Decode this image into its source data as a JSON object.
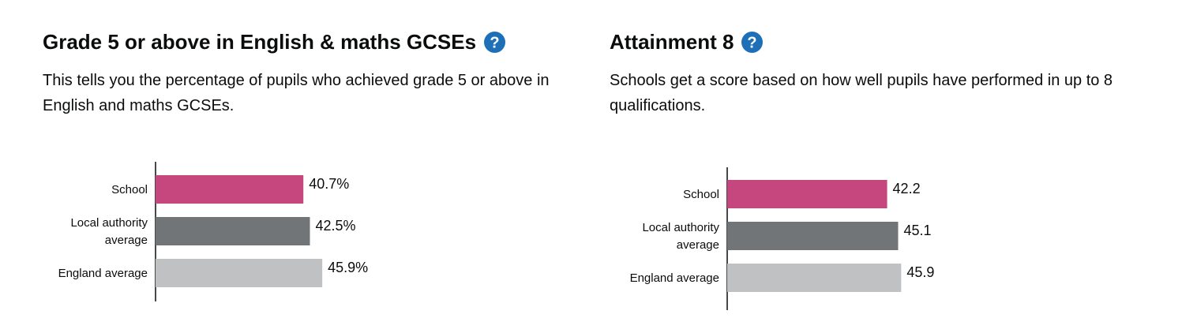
{
  "colors": {
    "school": "#c6477d",
    "local_authority": "#717578",
    "england": "#bfc1c3",
    "help_icon": "#1d70b8",
    "axis": "#0b0c0c"
  },
  "panels": [
    {
      "title": "Grade 5 or above in English & maths GCSEs",
      "help_icon": "question-mark-icon",
      "description": "This tells you the percentage of pupils who achieved grade 5 or above in English and maths GCSEs."
    },
    {
      "title": "Attainment 8",
      "help_icon": "question-mark-icon",
      "description": "Schools get a score based on how well pupils have performed in up to 8 qualifications."
    }
  ],
  "chart_data": [
    {
      "type": "bar",
      "orientation": "horizontal",
      "categories": [
        [
          "School"
        ],
        [
          "Local authority",
          "average"
        ],
        [
          "England average"
        ]
      ],
      "values": [
        40.7,
        42.5,
        45.9
      ],
      "value_labels": [
        "40.7%",
        "42.5%",
        "45.9%"
      ],
      "colors": [
        "#c6477d",
        "#717578",
        "#bfc1c3"
      ],
      "xlim": [
        0,
        100
      ],
      "grid": false,
      "title": "",
      "xlabel": "",
      "ylabel": ""
    },
    {
      "type": "bar",
      "orientation": "horizontal",
      "categories": [
        [
          "School"
        ],
        [
          "Local authority",
          "average"
        ],
        [
          "England average"
        ]
      ],
      "values": [
        42.2,
        45.1,
        45.9
      ],
      "value_labels": [
        "42.2",
        "45.1",
        "45.9"
      ],
      "colors": [
        "#c6477d",
        "#717578",
        "#bfc1c3"
      ],
      "xlim": [
        0,
        100
      ],
      "grid": false,
      "title": "",
      "xlabel": "",
      "ylabel": ""
    }
  ]
}
